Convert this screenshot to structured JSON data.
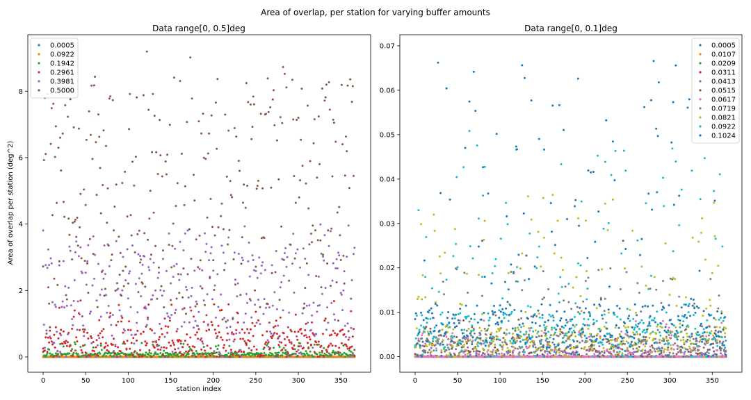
{
  "figure": {
    "title": "Area of overlap, per station for varying buffer amounts"
  },
  "chart_data": [
    {
      "type": "scatter",
      "title": "Data range[0, 0.5]deg",
      "xlabel": "station index",
      "ylabel": "Area of overlap per station (deg^2)",
      "xlim": [
        -18,
        385
      ],
      "ylim": [
        -0.46,
        9.7
      ],
      "xticks": [
        0,
        50,
        100,
        150,
        200,
        250,
        300,
        350
      ],
      "yticks": [
        0,
        2,
        4,
        6,
        8
      ],
      "ytick_labels": [
        "0",
        "2",
        "4",
        "6",
        "8"
      ],
      "legend_position": "upper-left",
      "n_points": 367,
      "series": [
        {
          "name": "0.0005",
          "color": "#1f77b4",
          "typical": 0.0,
          "max": 0.001
        },
        {
          "name": "0.0922",
          "color": "#ff7f0e",
          "typical": 0.005,
          "max": 0.03
        },
        {
          "name": "0.1942",
          "color": "#2ca02c",
          "typical": 0.08,
          "max": 0.45
        },
        {
          "name": "0.2961",
          "color": "#d62728",
          "typical": 0.5,
          "max": 1.7
        },
        {
          "name": "0.3981",
          "color": "#9467bd",
          "typical": 2.0,
          "max": 4.1
        },
        {
          "name": "0.5000",
          "color": "#8c564b",
          "typical": 5.0,
          "max": 9.2
        }
      ]
    },
    {
      "type": "scatter",
      "title": "Data range[0, 0.1]deg",
      "xlabel": "",
      "ylabel": "",
      "xlim": [
        -18,
        385
      ],
      "ylim": [
        -0.0035,
        0.0725
      ],
      "xticks": [
        0,
        50,
        100,
        150,
        200,
        250,
        300,
        350
      ],
      "yticks": [
        0.0,
        0.01,
        0.02,
        0.03,
        0.04,
        0.05,
        0.06,
        0.07
      ],
      "ytick_labels": [
        "0.00",
        "0.01",
        "0.02",
        "0.03",
        "0.04",
        "0.05",
        "0.06",
        "0.07"
      ],
      "legend_position": "upper-right",
      "n_points": 367,
      "series": [
        {
          "name": "0.0005",
          "color": "#1f77b4",
          "typical": 0.0,
          "max": 0.0
        },
        {
          "name": "0.0107",
          "color": "#ff7f0e",
          "typical": 0.0,
          "max": 0.0
        },
        {
          "name": "0.0209",
          "color": "#2ca02c",
          "typical": 0.0,
          "max": 0.0
        },
        {
          "name": "0.0311",
          "color": "#d62728",
          "typical": 0.0,
          "max": 0.0
        },
        {
          "name": "0.0413",
          "color": "#9467bd",
          "typical": 0.001,
          "max": 0.004
        },
        {
          "name": "0.0515",
          "color": "#8c564b",
          "typical": 0.002,
          "max": 0.009
        },
        {
          "name": "0.0617",
          "color": "#e377c2",
          "typical": 0.002,
          "max": 0.01
        },
        {
          "name": "0.0719",
          "color": "#7f7f7f",
          "typical": 0.003,
          "max": 0.02
        },
        {
          "name": "0.0821",
          "color": "#bcbd22",
          "typical": 0.004,
          "max": 0.037
        },
        {
          "name": "0.0922",
          "color": "#17becf",
          "typical": 0.006,
          "max": 0.051
        },
        {
          "name": "0.1024",
          "color": "#1f77b4",
          "typical": 0.007,
          "max": 0.068
        }
      ]
    }
  ]
}
